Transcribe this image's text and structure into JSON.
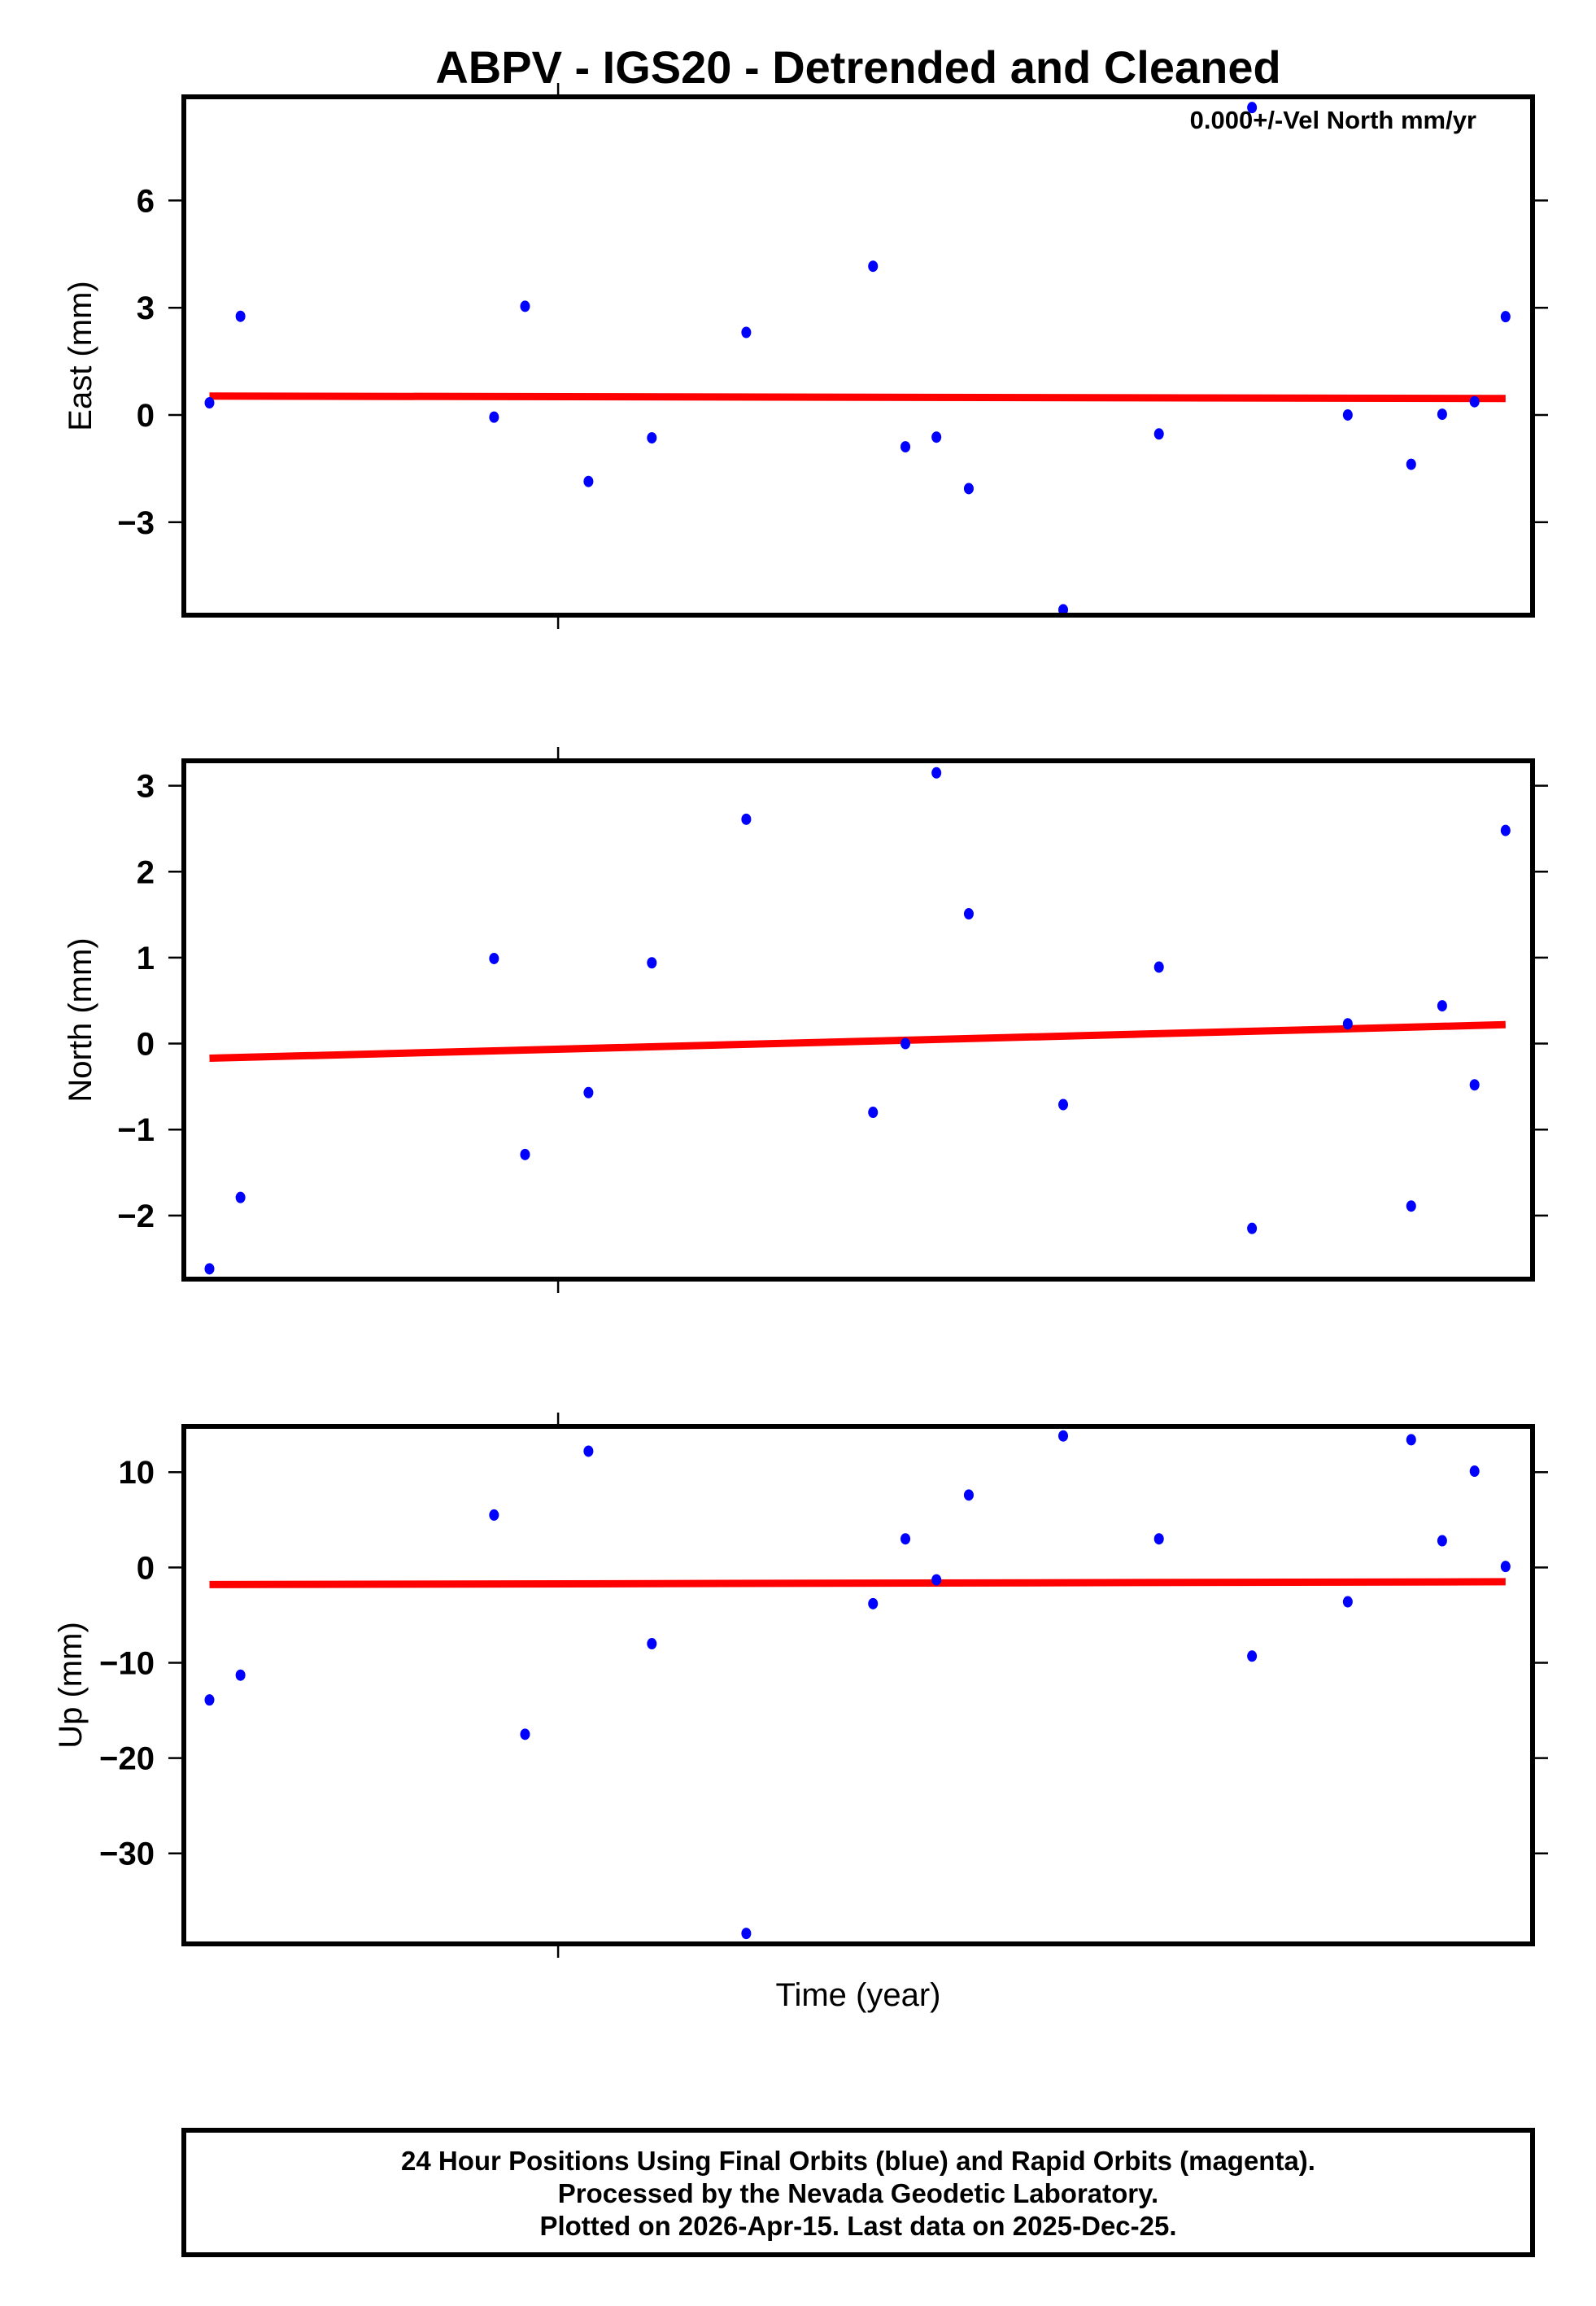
{
  "figure": {
    "title": "ABPV - IGS20 - Detrended and Cleaned",
    "annotation": "0.000+/-Vel North mm/yr",
    "xlabel": "Time (year)",
    "footer": {
      "lines": [
        "24 Hour Positions Using Final Orbits (blue) and Rapid Orbits (magenta).",
        "Processed by the Nevada Geodetic Laboratory.",
        "Plotted on 2026-Apr-15. Last data on 2025-Dec-25."
      ]
    },
    "colors": {
      "points_final_orbits": "#0000ff",
      "points_rapid_orbits": "#ff00ff",
      "trend_line": "#ff0000",
      "frame": "#000000"
    }
  },
  "chart_data": [
    {
      "type": "scatter",
      "panel": "east",
      "title": "ABPV - IGS20 - Detrended and Cleaned",
      "ylabel": "East (mm)",
      "xlabel": "",
      "annotation": "0.000+/-Vel North mm/yr",
      "ylim": [
        -5.6,
        8.9
      ],
      "yticks": [
        -3,
        0,
        3,
        6
      ],
      "ytick_labels": [
        "−3",
        "0",
        "3",
        "6"
      ],
      "x_note": "x = relative position along time axis (0 = left frame, 1 = right frame); no year tick labels shown",
      "x": [
        0.019,
        0.042,
        0.23,
        0.253,
        0.3,
        0.347,
        0.417,
        0.511,
        0.535,
        0.558,
        0.582,
        0.652,
        0.723,
        0.792,
        0.863,
        0.91,
        0.933,
        0.957,
        0.98
      ],
      "series": [
        {
          "name": "Final Orbits (blue)",
          "values": [
            0.34,
            2.76,
            -0.06,
            3.04,
            -1.86,
            -0.64,
            2.31,
            4.16,
            -0.89,
            -0.62,
            -2.06,
            -5.45,
            -0.53,
            8.6,
            0.0,
            -1.38,
            0.02,
            0.37,
            2.75
          ]
        },
        {
          "name": "Trend",
          "x": [
            0.019,
            0.98
          ],
          "values": [
            0.53,
            0.46
          ]
        }
      ],
      "grid": false,
      "legend": "none"
    },
    {
      "type": "scatter",
      "panel": "north",
      "ylabel": "North (mm)",
      "xlabel": "",
      "ylim": [
        -2.74,
        3.29
      ],
      "yticks": [
        -2,
        -1,
        0,
        1,
        2,
        3
      ],
      "ytick_labels": [
        "−2",
        "−1",
        "0",
        "1",
        "2",
        "3"
      ],
      "x": [
        0.019,
        0.042,
        0.23,
        0.253,
        0.3,
        0.347,
        0.417,
        0.511,
        0.535,
        0.558,
        0.582,
        0.652,
        0.723,
        0.792,
        0.863,
        0.91,
        0.933,
        0.957,
        0.98
      ],
      "series": [
        {
          "name": "Final Orbits (blue)",
          "values": [
            -2.62,
            -1.79,
            0.99,
            -1.29,
            -0.57,
            0.94,
            2.61,
            -0.8,
            0.0,
            3.15,
            1.51,
            -0.71,
            0.89,
            -2.15,
            0.23,
            -1.89,
            0.44,
            -0.48,
            2.48
          ]
        },
        {
          "name": "Trend",
          "x": [
            0.019,
            0.98
          ],
          "values": [
            -0.17,
            0.22
          ]
        }
      ],
      "grid": false,
      "legend": "none"
    },
    {
      "type": "scatter",
      "panel": "up",
      "ylabel": "Up (mm)",
      "xlabel": "Time (year)",
      "ylim": [
        -39.5,
        14.8
      ],
      "yticks": [
        -30,
        -20,
        -10,
        0,
        10
      ],
      "ytick_labels": [
        "−30",
        "−20",
        "−10",
        "0",
        "10"
      ],
      "x": [
        0.019,
        0.042,
        0.23,
        0.253,
        0.3,
        0.347,
        0.417,
        0.511,
        0.535,
        0.558,
        0.582,
        0.652,
        0.723,
        0.792,
        0.863,
        0.91,
        0.933,
        0.957,
        0.98
      ],
      "series": [
        {
          "name": "Final Orbits (blue)",
          "values": [
            -13.9,
            -11.3,
            5.5,
            -17.5,
            12.2,
            -8.0,
            -38.4,
            -3.8,
            3.0,
            -1.3,
            7.6,
            13.8,
            3.0,
            -9.3,
            -3.6,
            13.4,
            2.8,
            10.1,
            0.1
          ]
        },
        {
          "name": "Trend",
          "x": [
            0.019,
            0.98
          ],
          "values": [
            -1.8,
            -1.5
          ]
        }
      ],
      "grid": false,
      "legend": "none"
    }
  ]
}
